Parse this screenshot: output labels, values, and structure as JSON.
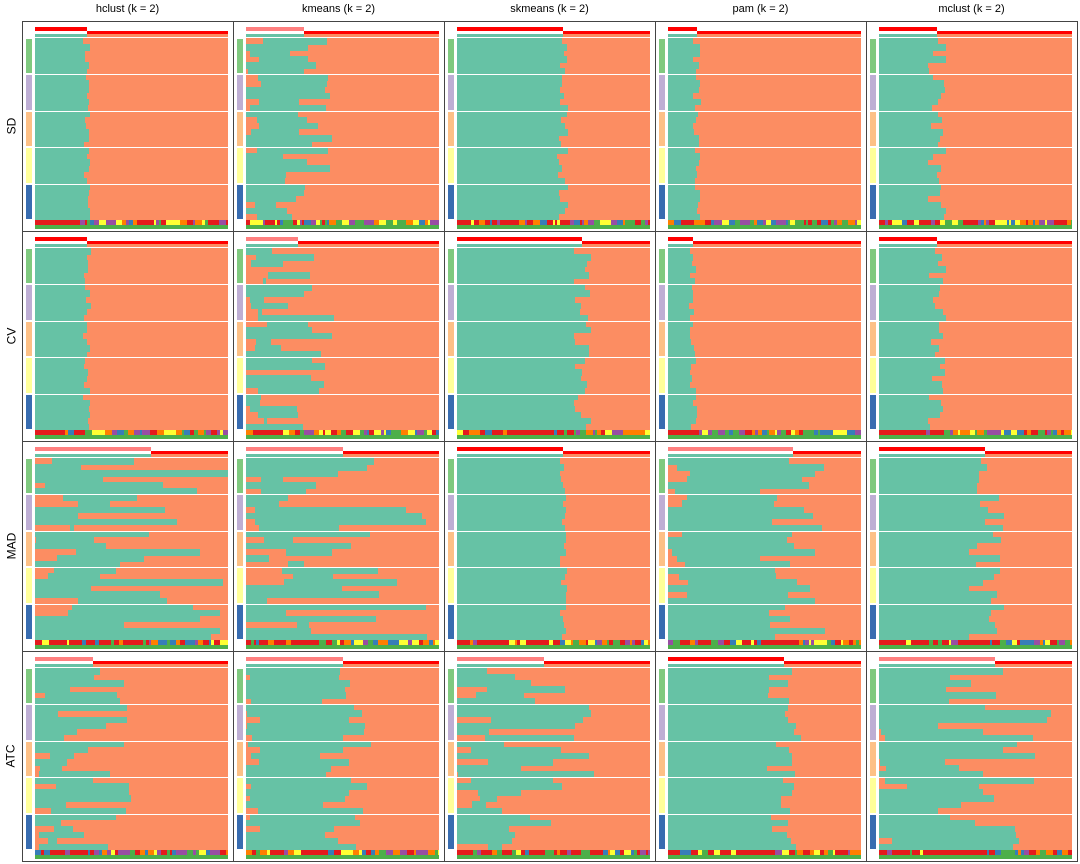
{
  "chart_data": {
    "type": "heatmap",
    "columns": [
      "hclust (k = 2)",
      "kmeans (k = 2)",
      "skmeans (k = 2)",
      "pam (k = 2)",
      "mclust (k = 2)"
    ],
    "rows": [
      "SD",
      "CV",
      "MAD",
      "ATC"
    ],
    "class_colors": {
      "1": "#66c2a5",
      "2": "#fc8d62"
    },
    "row_group_colors": [
      "#7fc97f",
      "#beaed4",
      "#fdc086",
      "#ffff99",
      "#386cb0"
    ],
    "silhouette_color": "#ff0000",
    "annotation_colors": [
      "#e41a1c",
      "#377eb8",
      "#4daf4a",
      "#984ea3",
      "#ff7f00",
      "#ffff33"
    ],
    "class1_fraction": [
      [
        0.27,
        0.3,
        0.55,
        0.15,
        0.3
      ],
      [
        0.27,
        0.27,
        0.65,
        0.13,
        0.3
      ],
      [
        0.6,
        0.5,
        0.55,
        0.65,
        0.55
      ],
      [
        0.3,
        0.5,
        0.45,
        0.6,
        0.6
      ]
    ],
    "noise": [
      [
        0.02,
        0.15,
        0.03,
        0.02,
        0.05
      ],
      [
        0.02,
        0.2,
        0.05,
        0.02,
        0.05
      ],
      [
        0.4,
        0.45,
        0.02,
        0.2,
        0.1
      ],
      [
        0.2,
        0.15,
        0.3,
        0.1,
        0.3
      ]
    ]
  }
}
